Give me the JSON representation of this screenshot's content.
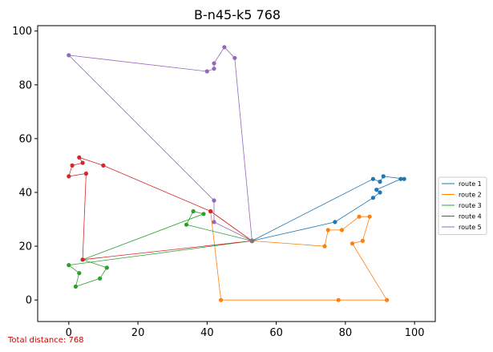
{
  "chart_data": {
    "type": "line",
    "title": "B-n45-k5 768",
    "xlabel": "",
    "ylabel": "",
    "xlim": [
      -9,
      106
    ],
    "ylim": [
      -8,
      102
    ],
    "xticks": [
      0,
      20,
      40,
      60,
      80,
      100
    ],
    "yticks": [
      0,
      20,
      40,
      60,
      80,
      100
    ],
    "grid": false,
    "legend_position": "right",
    "depot": [
      53,
      22
    ],
    "series": [
      {
        "name": "route 1",
        "color": "#1f77b4",
        "points": [
          [
            53,
            22
          ],
          [
            77,
            29
          ],
          [
            88,
            38
          ],
          [
            90,
            40
          ],
          [
            89,
            41
          ],
          [
            96,
            45
          ],
          [
            97,
            45
          ],
          [
            91,
            46
          ],
          [
            90,
            44
          ],
          [
            88,
            45
          ],
          [
            53,
            22
          ]
        ]
      },
      {
        "name": "route 2",
        "color": "#ff7f0e",
        "points": [
          [
            53,
            22
          ],
          [
            74,
            20
          ],
          [
            75,
            26
          ],
          [
            79,
            26
          ],
          [
            84,
            31
          ],
          [
            87,
            31
          ],
          [
            85,
            22
          ],
          [
            82,
            21
          ],
          [
            92,
            0
          ],
          [
            78,
            0
          ],
          [
            44,
            0
          ],
          [
            41,
            33
          ],
          [
            53,
            22
          ]
        ]
      },
      {
        "name": "route 3",
        "color": "#2ca02c",
        "points": [
          [
            53,
            22
          ],
          [
            34,
            28
          ],
          [
            36,
            33
          ],
          [
            39,
            32
          ],
          [
            4,
            15
          ],
          [
            11,
            12
          ],
          [
            9,
            8
          ],
          [
            2,
            5
          ],
          [
            3,
            10
          ],
          [
            0,
            13
          ],
          [
            53,
            22
          ]
        ]
      },
      {
        "name": "route 4",
        "color": "#d62728",
        "points": [
          [
            53,
            22
          ],
          [
            4,
            15
          ],
          [
            5,
            47
          ],
          [
            0,
            46
          ],
          [
            1,
            50
          ],
          [
            4,
            51
          ],
          [
            3,
            53
          ],
          [
            10,
            50
          ],
          [
            41,
            33
          ],
          [
            53,
            22
          ]
        ]
      },
      {
        "name": "route 5",
        "color": "#9467bd",
        "points": [
          [
            53,
            22
          ],
          [
            42,
            29
          ],
          [
            42,
            37
          ],
          [
            0,
            91
          ],
          [
            40,
            85
          ],
          [
            42,
            86
          ],
          [
            42,
            88
          ],
          [
            45,
            94
          ],
          [
            48,
            90
          ],
          [
            53,
            22
          ]
        ]
      }
    ]
  },
  "footer": {
    "total_distance": "Total distance: 768"
  }
}
